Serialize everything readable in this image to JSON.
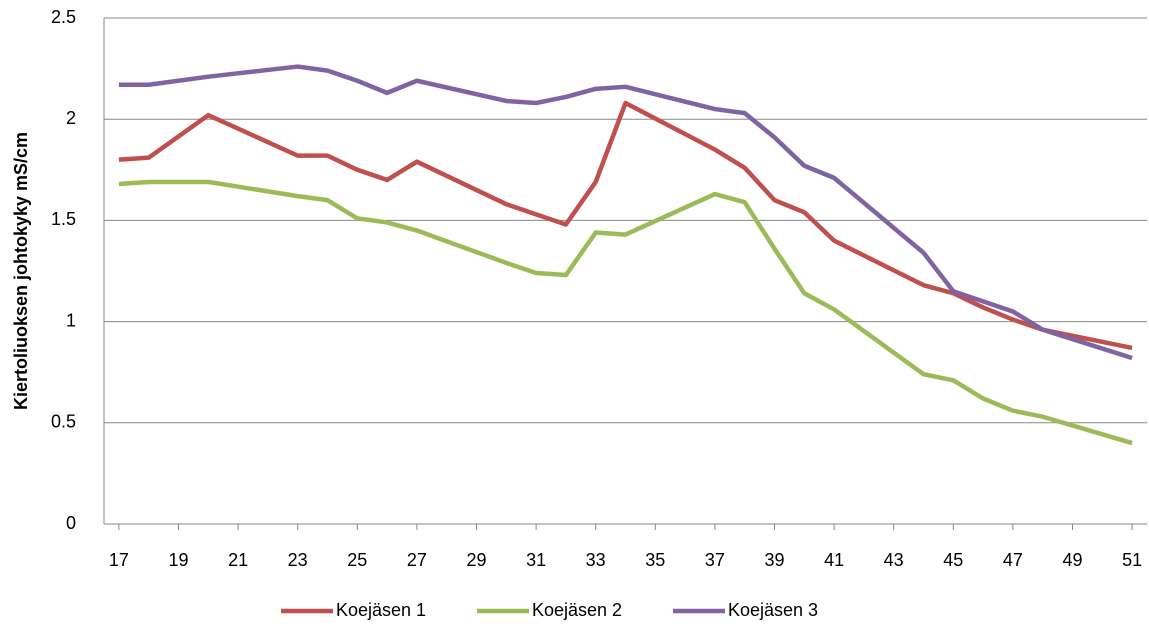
{
  "chart_data": {
    "type": "line",
    "y_label": "Kiertoliuoksen johtokyky mS/cm",
    "x": [
      17,
      18,
      20,
      23,
      24,
      25,
      26,
      27,
      30,
      31,
      32,
      33,
      34,
      37,
      38,
      39,
      40,
      41,
      44,
      45,
      46,
      47,
      48,
      51
    ],
    "xlim": [
      16.5,
      51.5
    ],
    "xticks": [
      17,
      19,
      21,
      23,
      25,
      27,
      29,
      31,
      33,
      35,
      37,
      39,
      41,
      43,
      45,
      47,
      49,
      51
    ],
    "ylim": [
      0,
      2.5
    ],
    "yticks": [
      0,
      0.5,
      1,
      1.5,
      2,
      2.5
    ],
    "grid": true,
    "legend": "bottom",
    "series": [
      {
        "name": "Koejäsen 1",
        "color": "#c0504d",
        "values": [
          1.8,
          1.81,
          2.02,
          1.82,
          1.82,
          1.75,
          1.7,
          1.79,
          1.58,
          1.53,
          1.48,
          1.69,
          2.08,
          1.85,
          1.76,
          1.6,
          1.54,
          1.4,
          1.18,
          1.14,
          1.07,
          1.01,
          0.96,
          0.87
        ]
      },
      {
        "name": "Koejäsen 2",
        "color": "#9bbb59",
        "values": [
          1.68,
          1.69,
          1.69,
          1.62,
          1.6,
          1.51,
          1.49,
          1.45,
          1.29,
          1.24,
          1.23,
          1.44,
          1.43,
          1.63,
          1.59,
          1.36,
          1.14,
          1.06,
          0.74,
          0.71,
          0.62,
          0.56,
          0.53,
          0.4
        ]
      },
      {
        "name": "Koejäsen 3",
        "color": "#8064a2",
        "values": [
          2.17,
          2.17,
          2.21,
          2.26,
          2.24,
          2.19,
          2.13,
          2.19,
          2.09,
          2.08,
          2.11,
          2.15,
          2.16,
          2.05,
          2.03,
          1.91,
          1.77,
          1.71,
          1.34,
          1.15,
          1.1,
          1.05,
          0.96,
          0.82
        ]
      }
    ]
  }
}
